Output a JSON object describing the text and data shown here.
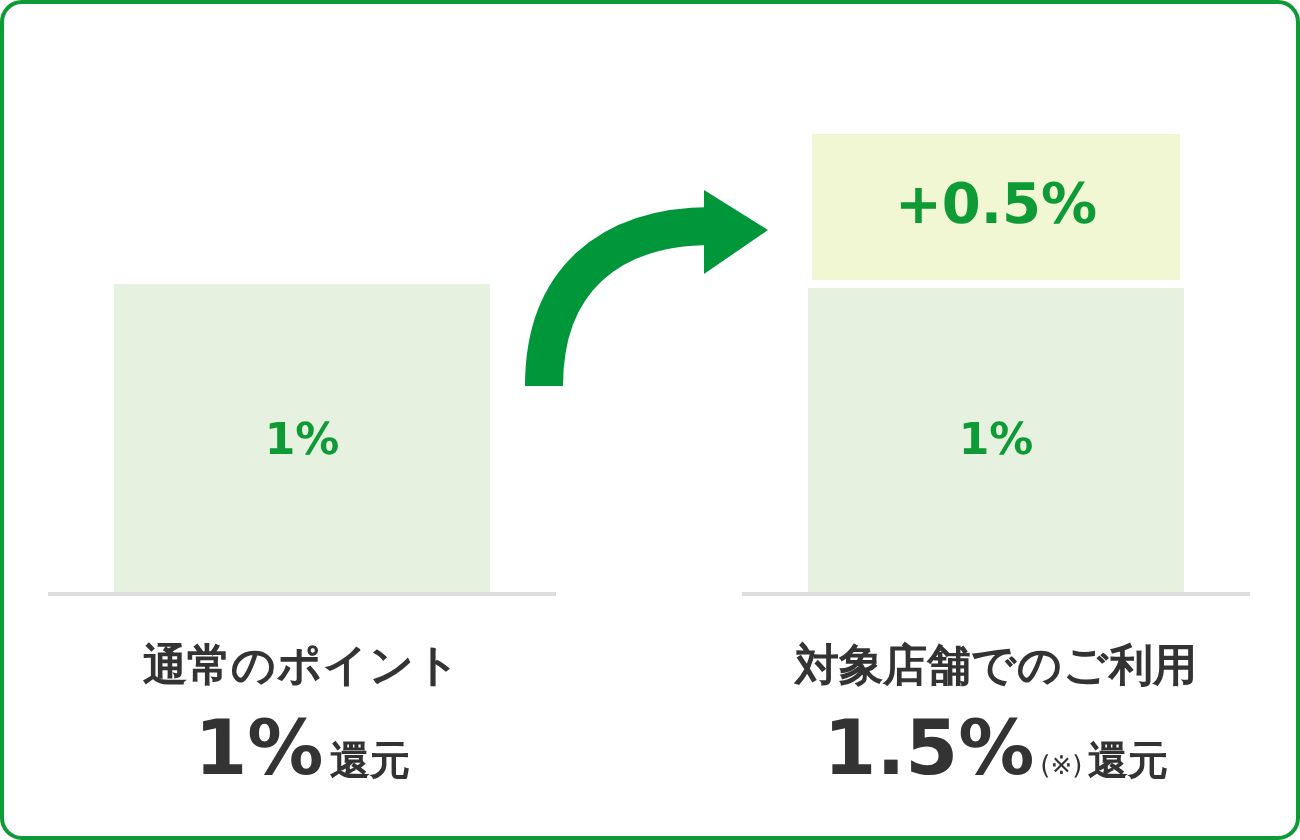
{
  "chart_data": {
    "type": "bar",
    "stacked": true,
    "categories": [
      "通常のポイント",
      "対象店舗でのご利用"
    ],
    "series": [
      {
        "color": "#e6f2df",
        "values": [
          1,
          1
        ],
        "value_labels": [
          "1%",
          "1%"
        ]
      },
      {
        "color": "#f0f7d2",
        "values": [
          null,
          0.5
        ],
        "value_labels": [
          null,
          "+0.5%"
        ]
      }
    ],
    "annotations": [
      "1%還元",
      "1.5%(※)還元"
    ]
  }
}
